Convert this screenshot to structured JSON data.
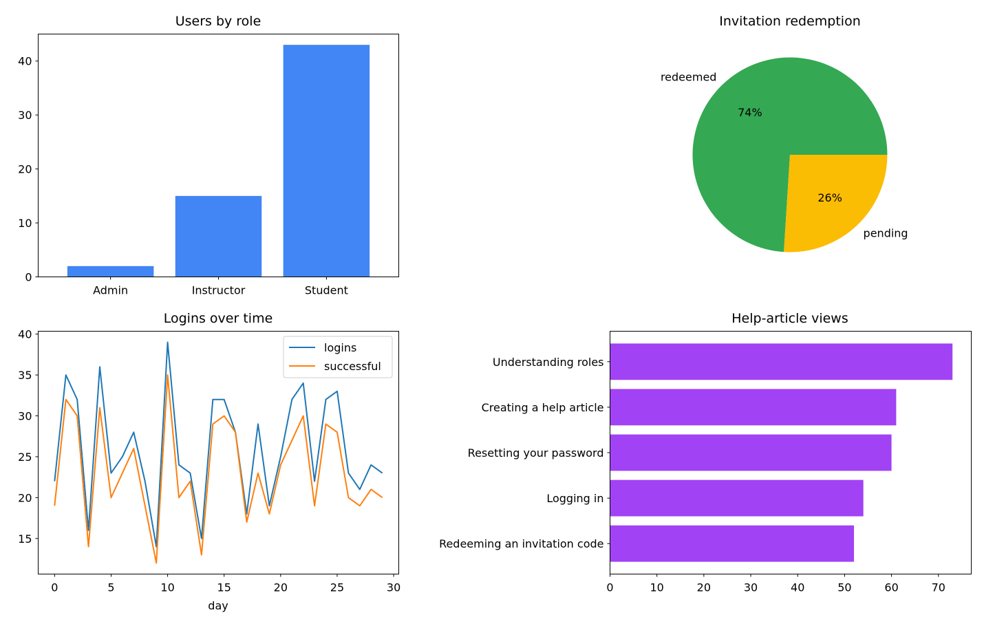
{
  "chart_data": [
    {
      "type": "bar",
      "title": "Users by role",
      "categories": [
        "Admin",
        "Instructor",
        "Student"
      ],
      "values": [
        2,
        15,
        43
      ],
      "ylim": [
        0,
        45
      ],
      "yticks": [
        0,
        10,
        20,
        30,
        40
      ],
      "color": "#4285f4",
      "xlabel": "",
      "ylabel": "",
      "grid": false
    },
    {
      "type": "pie",
      "title": "Invitation redemption",
      "labels": [
        "redeemed",
        "pending"
      ],
      "values": [
        74,
        26
      ],
      "percent_labels": [
        "74%",
        "26%"
      ],
      "colors": [
        "#34a853",
        "#fbbc04"
      ]
    },
    {
      "type": "line",
      "title": "Logins over time",
      "xlabel": "day",
      "ylabel": "",
      "x": [
        0,
        1,
        2,
        3,
        4,
        5,
        6,
        7,
        8,
        9,
        10,
        11,
        12,
        13,
        14,
        15,
        16,
        17,
        18,
        19,
        20,
        21,
        22,
        23,
        24,
        25,
        26,
        27,
        28,
        29
      ],
      "series": [
        {
          "name": "logins",
          "color": "#1f77b4",
          "values": [
            22,
            35,
            32,
            16,
            36,
            23,
            25,
            28,
            22,
            14,
            39,
            24,
            23,
            15,
            32,
            32,
            28,
            18,
            29,
            19,
            25,
            32,
            34,
            22,
            32,
            33,
            23,
            21,
            24,
            23
          ]
        },
        {
          "name": "successful",
          "color": "#ff7f0e",
          "values": [
            19,
            32,
            30,
            14,
            31,
            20,
            23,
            26,
            19,
            12,
            35,
            20,
            22,
            13,
            29,
            30,
            28,
            17,
            23,
            18,
            24,
            27,
            30,
            19,
            29,
            28,
            20,
            19,
            21,
            20
          ]
        }
      ],
      "xlim": [
        -1.45,
        30.45
      ],
      "ylim": [
        10.65,
        40.35
      ],
      "xticks": [
        0,
        5,
        10,
        15,
        20,
        25,
        30
      ],
      "yticks": [
        15,
        20,
        25,
        30,
        35,
        40
      ],
      "legend": "upper-right",
      "grid": false
    },
    {
      "type": "bar",
      "orientation": "horizontal",
      "title": "Help-article views",
      "categories": [
        "Understanding roles",
        "Creating a help article",
        "Resetting your password",
        "Logging in",
        "Redeeming an invitation code"
      ],
      "values": [
        73,
        61,
        60,
        54,
        52
      ],
      "xlim": [
        0,
        77
      ],
      "xticks": [
        0,
        10,
        20,
        30,
        40,
        50,
        60,
        70
      ],
      "color": "#a142f4",
      "xlabel": "",
      "ylabel": "",
      "grid": false
    }
  ]
}
